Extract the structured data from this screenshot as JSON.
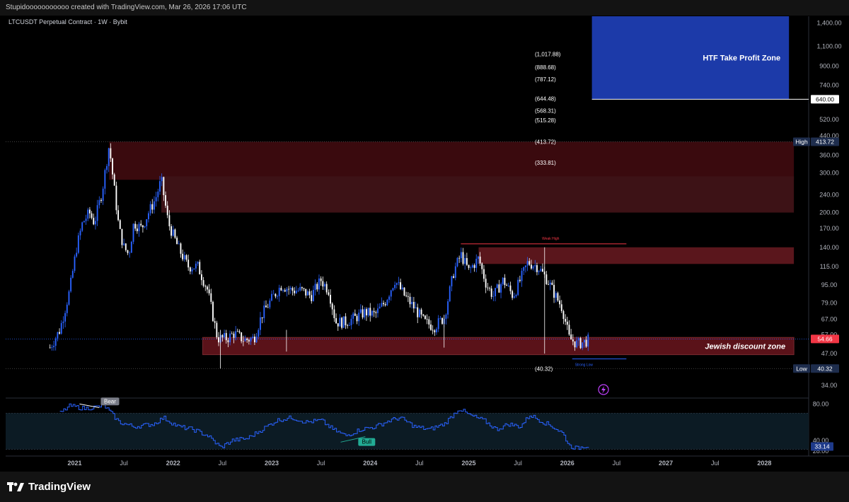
{
  "header": {
    "credit": "Stupidooooooooooo created with TradingView.com, Mar 26, 2026 17:06 UTC",
    "symbol": "LTCUSDT Perpetual Contract · 1W · Bybit"
  },
  "footer": {
    "brand": "TradingView"
  },
  "colors": {
    "background": "#000000",
    "candle_up": "#2962ff",
    "candle_down": "#ffffff",
    "zone_dark_red": "#3a0a0e",
    "zone_red": "#5a161c",
    "zone_blue": "#1c3aa9",
    "rsi_line": "#2962ff",
    "price_badge": "#f23645"
  },
  "chart_data": {
    "type": "candlestick",
    "title": "LTCUSDT Perpetual Contract · 1W · Bybit",
    "yscale": "log",
    "ylim": [
      30,
      1500
    ],
    "y_ticks": [
      "1,400.00",
      "1,100.00",
      "900.00",
      "740.00",
      "640.00",
      "520.00",
      "440.00",
      "360.00",
      "300.00",
      "240.00",
      "200.00",
      "170.00",
      "140.00",
      "115.00",
      "95.00",
      "79.00",
      "67.00",
      "57.00",
      "47.00",
      "34.00"
    ],
    "y_tick_values": [
      1400,
      1100,
      900,
      740,
      640,
      520,
      440,
      360,
      300,
      240,
      200,
      170,
      140,
      115,
      95,
      79,
      67,
      57,
      47,
      34
    ],
    "x_ticks": [
      "2021",
      "Jul",
      "2022",
      "Jul",
      "2023",
      "Jul",
      "2024",
      "Jul",
      "2025",
      "Jul",
      "2026",
      "Jul",
      "2027",
      "Jul",
      "2028"
    ],
    "x_tick_years": [
      2021.0,
      2021.5,
      2022.0,
      2022.5,
      2023.0,
      2023.5,
      2024.0,
      2024.5,
      2025.0,
      2025.5,
      2026.0,
      2026.5,
      2027.0,
      2027.5,
      2028.0
    ],
    "price_path": [
      {
        "t": 2020.75,
        "p": 50
      },
      {
        "t": 2020.85,
        "p": 60
      },
      {
        "t": 2020.95,
        "p": 90
      },
      {
        "t": 2021.02,
        "p": 140
      },
      {
        "t": 2021.08,
        "p": 180
      },
      {
        "t": 2021.15,
        "p": 200
      },
      {
        "t": 2021.2,
        "p": 180
      },
      {
        "t": 2021.28,
        "p": 250
      },
      {
        "t": 2021.35,
        "p": 400
      },
      {
        "t": 2021.4,
        "p": 260
      },
      {
        "t": 2021.45,
        "p": 170
      },
      {
        "t": 2021.5,
        "p": 140
      },
      {
        "t": 2021.55,
        "p": 130
      },
      {
        "t": 2021.6,
        "p": 180
      },
      {
        "t": 2021.68,
        "p": 170
      },
      {
        "t": 2021.75,
        "p": 200
      },
      {
        "t": 2021.82,
        "p": 230
      },
      {
        "t": 2021.88,
        "p": 280
      },
      {
        "t": 2021.95,
        "p": 180
      },
      {
        "t": 2022.05,
        "p": 140
      },
      {
        "t": 2022.15,
        "p": 115
      },
      {
        "t": 2022.25,
        "p": 115
      },
      {
        "t": 2022.35,
        "p": 90
      },
      {
        "t": 2022.45,
        "p": 55
      },
      {
        "t": 2022.55,
        "p": 55
      },
      {
        "t": 2022.62,
        "p": 58
      },
      {
        "t": 2022.72,
        "p": 54
      },
      {
        "t": 2022.82,
        "p": 55
      },
      {
        "t": 2022.9,
        "p": 70
      },
      {
        "t": 2023.02,
        "p": 85
      },
      {
        "t": 2023.1,
        "p": 95
      },
      {
        "t": 2023.2,
        "p": 90
      },
      {
        "t": 2023.3,
        "p": 90
      },
      {
        "t": 2023.4,
        "p": 85
      },
      {
        "t": 2023.5,
        "p": 100
      },
      {
        "t": 2023.58,
        "p": 90
      },
      {
        "t": 2023.65,
        "p": 65
      },
      {
        "t": 2023.75,
        "p": 65
      },
      {
        "t": 2023.85,
        "p": 68
      },
      {
        "t": 2023.95,
        "p": 72
      },
      {
        "t": 2024.05,
        "p": 70
      },
      {
        "t": 2024.15,
        "p": 80
      },
      {
        "t": 2024.25,
        "p": 100
      },
      {
        "t": 2024.35,
        "p": 85
      },
      {
        "t": 2024.45,
        "p": 75
      },
      {
        "t": 2024.55,
        "p": 65
      },
      {
        "t": 2024.65,
        "p": 62
      },
      {
        "t": 2024.75,
        "p": 68
      },
      {
        "t": 2024.85,
        "p": 110
      },
      {
        "t": 2024.92,
        "p": 130
      },
      {
        "t": 2025.0,
        "p": 110
      },
      {
        "t": 2025.1,
        "p": 125
      },
      {
        "t": 2025.18,
        "p": 95
      },
      {
        "t": 2025.25,
        "p": 85
      },
      {
        "t": 2025.35,
        "p": 100
      },
      {
        "t": 2025.45,
        "p": 85
      },
      {
        "t": 2025.5,
        "p": 95
      },
      {
        "t": 2025.6,
        "p": 120
      },
      {
        "t": 2025.7,
        "p": 115
      },
      {
        "t": 2025.8,
        "p": 100
      },
      {
        "t": 2025.88,
        "p": 85
      },
      {
        "t": 2025.95,
        "p": 75
      },
      {
        "t": 2026.02,
        "p": 55
      },
      {
        "t": 2026.1,
        "p": 52
      },
      {
        "t": 2026.18,
        "p": 53
      },
      {
        "t": 2026.23,
        "p": 54.66
      }
    ],
    "zones": [
      {
        "label": "",
        "t_start": 2021.35,
        "t_end": 2028.3,
        "p_low": 280,
        "p_high": 413.72,
        "color": "#3a0a0e"
      },
      {
        "label": "",
        "t_start": 2021.88,
        "t_end": 2028.3,
        "p_low": 200,
        "p_high": 290,
        "color": "#3d1216"
      },
      {
        "label": "",
        "t_start": 2025.1,
        "t_end": 2028.3,
        "p_low": 118,
        "p_high": 140,
        "color": "#5a161c"
      },
      {
        "label": "Jewish discount zone",
        "t_start": 2022.3,
        "t_end": 2028.3,
        "p_low": 46.5,
        "p_high": 55.5,
        "color": "#5a1219"
      },
      {
        "label": "HTF Take Profit Zone",
        "t_start": 2026.25,
        "t_end": 2028.25,
        "p_low": 640,
        "p_high": 1500,
        "color": "#1c3aa9"
      }
    ],
    "price_levels": [
      {
        "label": "(1,017.88)",
        "value": 1017.88
      },
      {
        "label": "(888.68)",
        "value": 888.68
      },
      {
        "label": "(787.12)",
        "value": 787.12
      },
      {
        "label": "(644.48)",
        "value": 644.48
      },
      {
        "label": "(568.31)",
        "value": 568.31
      },
      {
        "label": "(515.28)",
        "value": 515.28
      },
      {
        "label": "(413.72)",
        "value": 413.72
      },
      {
        "label": "(333.81)",
        "value": 333.81
      },
      {
        "label": "(40.32)",
        "value": 40.32
      }
    ],
    "axis_markers": [
      {
        "label": "High",
        "value": 413.72,
        "text": "413.72"
      },
      {
        "label": "Low",
        "value": 40.32,
        "text": "40.32"
      },
      {
        "label": "",
        "value": 640,
        "text": "640.00"
      },
      {
        "label": "",
        "value": 54.66,
        "text": "54.66"
      }
    ],
    "annotations": [
      {
        "text": "Weak High",
        "t": 2025.6,
        "value": 145
      },
      {
        "text": "Strong Low",
        "t": 2026.15,
        "value": 44.5
      }
    ],
    "rsi": {
      "y_ticks": [
        "80.00",
        "40.00",
        "28.00"
      ],
      "y_tick_values": [
        80,
        40,
        28
      ],
      "ylim": [
        25,
        85
      ],
      "upper_band": 70,
      "lower_band": 30,
      "current": "33.14",
      "current_value": 33.14,
      "signals": [
        {
          "label": "Bear",
          "t": 2021.28,
          "value": 77
        },
        {
          "label": "Bull",
          "t": 2023.95,
          "value": 44
        }
      ],
      "path": [
        {
          "t": 2020.85,
          "p": 70
        },
        {
          "t": 2020.95,
          "p": 78
        },
        {
          "t": 2021.1,
          "p": 75
        },
        {
          "t": 2021.3,
          "p": 78
        },
        {
          "t": 2021.45,
          "p": 60
        },
        {
          "t": 2021.6,
          "p": 55
        },
        {
          "t": 2021.8,
          "p": 58
        },
        {
          "t": 2021.9,
          "p": 65
        },
        {
          "t": 2022.05,
          "p": 55
        },
        {
          "t": 2022.2,
          "p": 52
        },
        {
          "t": 2022.35,
          "p": 45
        },
        {
          "t": 2022.48,
          "p": 32
        },
        {
          "t": 2022.6,
          "p": 40
        },
        {
          "t": 2022.75,
          "p": 42
        },
        {
          "t": 2022.9,
          "p": 52
        },
        {
          "t": 2023.05,
          "p": 62
        },
        {
          "t": 2023.2,
          "p": 65
        },
        {
          "t": 2023.35,
          "p": 60
        },
        {
          "t": 2023.5,
          "p": 62
        },
        {
          "t": 2023.62,
          "p": 52
        },
        {
          "t": 2023.75,
          "p": 45
        },
        {
          "t": 2023.9,
          "p": 52
        },
        {
          "t": 2024.05,
          "p": 55
        },
        {
          "t": 2024.2,
          "p": 62
        },
        {
          "t": 2024.3,
          "p": 65
        },
        {
          "t": 2024.45,
          "p": 55
        },
        {
          "t": 2024.6,
          "p": 52
        },
        {
          "t": 2024.75,
          "p": 58
        },
        {
          "t": 2024.9,
          "p": 75
        },
        {
          "t": 2025.0,
          "p": 68
        },
        {
          "t": 2025.15,
          "p": 62
        },
        {
          "t": 2025.28,
          "p": 52
        },
        {
          "t": 2025.4,
          "p": 58
        },
        {
          "t": 2025.52,
          "p": 55
        },
        {
          "t": 2025.62,
          "p": 68
        },
        {
          "t": 2025.72,
          "p": 62
        },
        {
          "t": 2025.85,
          "p": 55
        },
        {
          "t": 2025.95,
          "p": 48
        },
        {
          "t": 2026.02,
          "p": 34
        },
        {
          "t": 2026.1,
          "p": 31
        },
        {
          "t": 2026.18,
          "p": 34
        },
        {
          "t": 2026.23,
          "p": 33.14
        }
      ]
    }
  }
}
